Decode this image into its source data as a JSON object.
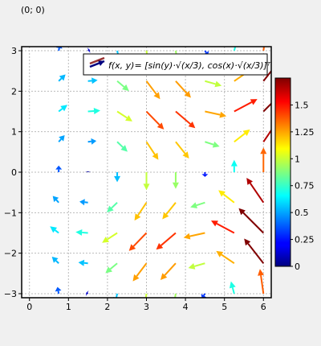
{
  "status": {
    "coordinate_readout": "(0; 0)"
  },
  "chart_data": {
    "type": "vector-field",
    "title": "",
    "xlabel": "",
    "ylabel": "",
    "xlim": [
      -0.2,
      6.2
    ],
    "ylim": [
      -3.1,
      3.1
    ],
    "x_ticks": [
      0,
      1,
      2,
      3,
      4,
      5,
      6
    ],
    "y_ticks": [
      -3,
      -2,
      -1,
      0,
      1,
      2,
      3
    ],
    "grid": true,
    "grid_style": "dotted",
    "legend": {
      "position": "top-right",
      "label": "f(x, y)= [sin(y)·√(x/3), cos(x)·√(x/3)]ᵀ"
    },
    "colormap": {
      "name": "jet",
      "range": [
        0,
        1.75
      ],
      "tick_values": [
        0,
        0.25,
        0.5,
        0.75,
        1,
        1.25,
        1.5
      ],
      "tick_labels": [
        "0",
        "0.25",
        "0.5",
        "0.75",
        "1",
        "1.25",
        "1.5"
      ]
    },
    "grid_x": [
      0.75,
      1.5,
      2.25,
      3,
      3.75,
      4.5,
      5.25,
      6
    ],
    "grid_y": [
      -3,
      -2.25,
      -1.5,
      -0.75,
      0,
      0.75,
      1.5,
      2.25,
      3
    ],
    "vector_function": "u = sin(y)*sqrt(x/3), v = cos(x)*sqrt(x/3)",
    "vector_scale": 0.45
  }
}
